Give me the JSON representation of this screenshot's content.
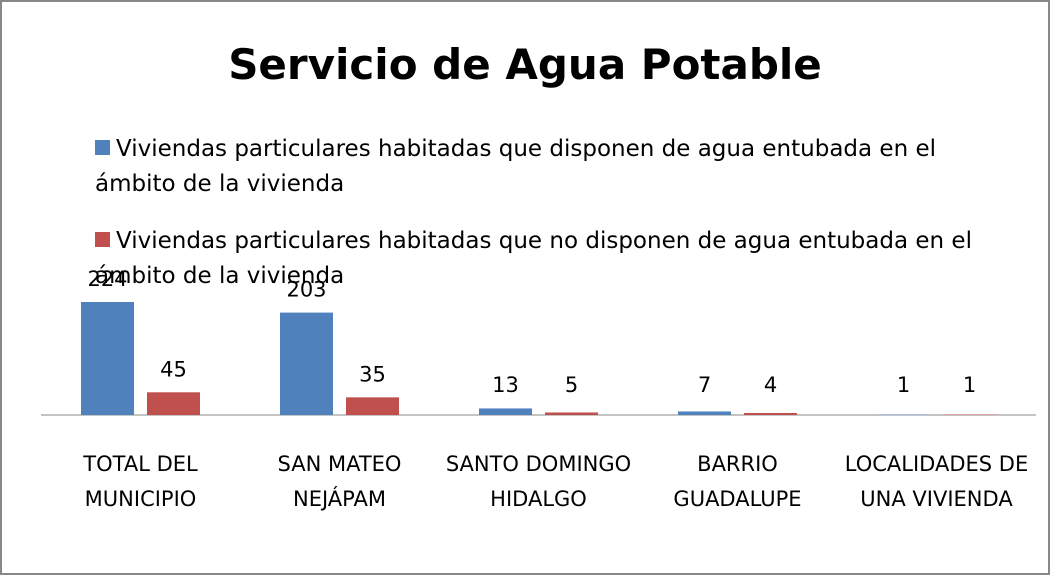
{
  "chart_data": {
    "type": "bar",
    "title": "Servicio de Agua Potable",
    "categories": [
      "TOTAL DEL MUNICIPIO",
      "SAN MATEO NEJÁPAM",
      "SANTO DOMINGO HIDALGO",
      "BARRIO GUADALUPE",
      "LOCALIDADES DE UNA VIVIENDA"
    ],
    "series": [
      {
        "name": "Viviendas particulares habitadas que disponen de agua entubada en el ámbito de la vivienda",
        "color": "#4f81bd",
        "values": [
          224,
          203,
          13,
          7,
          1
        ]
      },
      {
        "name": "Viviendas particulares habitadas que no disponen de agua entubada en el ámbito de la vivienda",
        "color": "#c0504d",
        "values": [
          45,
          35,
          5,
          4,
          1
        ]
      }
    ]
  }
}
